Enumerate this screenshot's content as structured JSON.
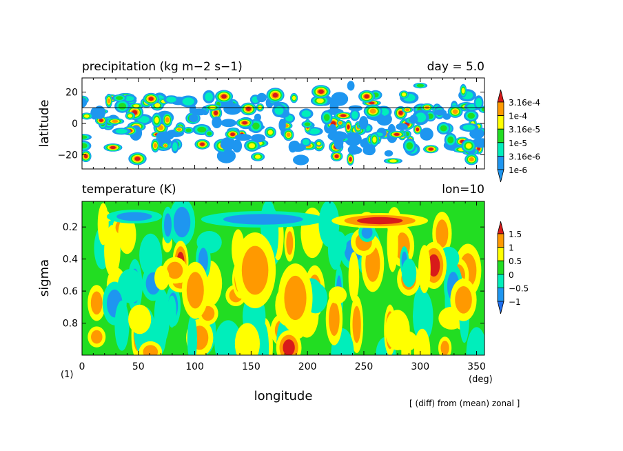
{
  "figure_label": "(1)",
  "xunit": "(deg)",
  "xlabel": "longitude",
  "footnote": "[ (diff) from (mean) zonal ]",
  "chart_data": [
    {
      "type": "heatmap",
      "title": "precipitation (kg m−2 s−1)",
      "annotation": "day = 5.0",
      "ylabel": "latitude",
      "xlim": [
        0,
        357
      ],
      "ylim": [
        -29,
        29
      ],
      "xticks": [
        0,
        50,
        100,
        150,
        200,
        250,
        300,
        350
      ],
      "yticks": [
        -20,
        0,
        20
      ],
      "reference_line_lat": 10,
      "colorbar": {
        "labels": [
          "3.16e-4",
          "1e-4",
          "3.16e-5",
          "1e-5",
          "3.16e-6",
          "1e-6"
        ],
        "colors": [
          "#d81a1a",
          "#ff9900",
          "#ffff00",
          "#22dd22",
          "#00eebb",
          "#1e96f0",
          "#1e96f0"
        ]
      },
      "levels_colors": [
        "#ffffff",
        "#1e96f0",
        "#00eebb",
        "#22dd22",
        "#ffff00",
        "#ff9900",
        "#d81a1a"
      ],
      "grid": false
    },
    {
      "type": "heatmap",
      "title": "temperature (K)",
      "annotation": "lon=10",
      "ylabel": "sigma",
      "xlim": [
        0,
        357
      ],
      "ylim": [
        1.0,
        0.04
      ],
      "xticks": [
        0,
        50,
        100,
        150,
        200,
        250,
        300,
        350
      ],
      "yticks": [
        0.2,
        0.4,
        0.6,
        0.8
      ],
      "colorbar": {
        "labels": [
          "1.5",
          "1",
          "0.5",
          "0",
          "−0.5",
          "−1"
        ],
        "colors": [
          "#d81a1a",
          "#ff9900",
          "#ffff00",
          "#22dd22",
          "#00eebb",
          "#1e96f0",
          "#1e6ef0"
        ]
      },
      "levels_colors": [
        "#1e50e6",
        "#1e96f0",
        "#00eebb",
        "#22dd22",
        "#ffff00",
        "#ff9900",
        "#d81a1a"
      ],
      "grid": false
    }
  ]
}
